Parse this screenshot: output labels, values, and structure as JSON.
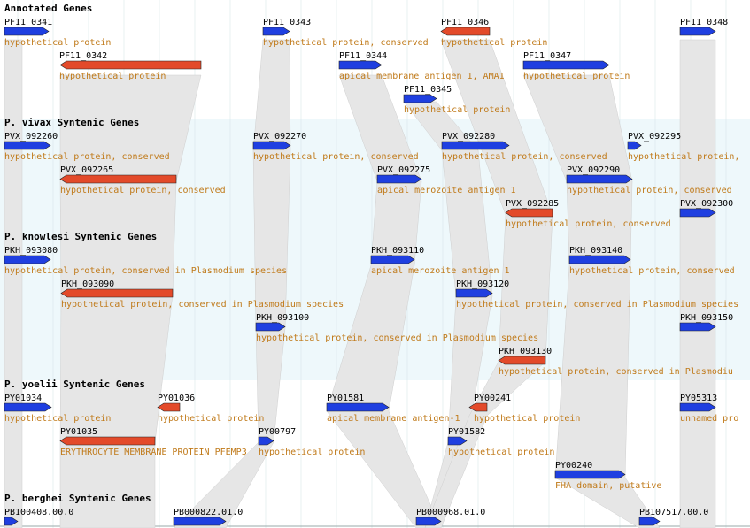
{
  "colors": {
    "forward": "#1f3fe0",
    "reverse": "#e34a2a",
    "label": "#c07a1a",
    "band": "#eef8fb",
    "connector": "#e6e6e6",
    "grid": "#d8e6ea"
  },
  "sections": [
    {
      "key": "annotated",
      "title": "Annotated Genes"
    },
    {
      "key": "pvivax",
      "title": "P. vivax Syntenic Genes"
    },
    {
      "key": "pknowlesi",
      "title": "P. knowlesi Syntenic Genes"
    },
    {
      "key": "pyoelii",
      "title": "P. yoelii Syntenic Genes"
    },
    {
      "key": "pberghei",
      "title": "P. berghei Syntenic Genes"
    }
  ],
  "genes": [
    {
      "id": "PF11_0341",
      "desc": "hypothetical protein",
      "strand": "+"
    },
    {
      "id": "PF11_0342",
      "desc": "hypothetical protein",
      "strand": "-"
    },
    {
      "id": "PF11_0343",
      "desc": "hypothetical protein, conserved",
      "strand": "+"
    },
    {
      "id": "PF11_0344",
      "desc": "apical membrane antigen 1,  AMA1",
      "strand": "+"
    },
    {
      "id": "PF11_0345",
      "desc": "hypothetical protein",
      "strand": "+"
    },
    {
      "id": "PF11_0346",
      "desc": "hypothetical protein",
      "strand": "-"
    },
    {
      "id": "PF11_0347",
      "desc": "hypothetical protein",
      "strand": "+"
    },
    {
      "id": "PF11_0348",
      "desc": "",
      "strand": "+"
    },
    {
      "id": "PVX_092260",
      "desc": "hypothetical protein, conserved",
      "strand": "+"
    },
    {
      "id": "PVX_092265",
      "desc": "hypothetical protein, conserved",
      "strand": "-"
    },
    {
      "id": "PVX_092270",
      "desc": "hypothetical protein, conserved",
      "strand": "+"
    },
    {
      "id": "PVX_092275",
      "desc": "apical merozoite antigen 1",
      "strand": "+"
    },
    {
      "id": "PVX_092280",
      "desc": "hypothetical protein, conserved",
      "strand": "+"
    },
    {
      "id": "PVX_092285",
      "desc": "hypothetical protein, conserved",
      "strand": "-"
    },
    {
      "id": "PVX_092290",
      "desc": "hypothetical protein, conserved",
      "strand": "+"
    },
    {
      "id": "PVX_092295",
      "desc": "hypothetical protein,",
      "strand": "+"
    },
    {
      "id": "PVX_092300",
      "desc": "",
      "strand": "+"
    },
    {
      "id": "PKH_093080",
      "desc": "hypothetical protein, conserved in Plasmodium species",
      "strand": "+"
    },
    {
      "id": "PKH_093090",
      "desc": "hypothetical protein, conserved in Plasmodium species",
      "strand": "-"
    },
    {
      "id": "PKH_093100",
      "desc": "hypothetical protein, conserved in Plasmodium species",
      "strand": "+"
    },
    {
      "id": "PKH_093110",
      "desc": "apical merozoite antigen 1",
      "strand": "+"
    },
    {
      "id": "PKH_093120",
      "desc": "hypothetical protein, conserved in Plasmodium species",
      "strand": "+"
    },
    {
      "id": "PKH_093130",
      "desc": "hypothetical protein, conserved in Plasmodiu",
      "strand": "-"
    },
    {
      "id": "PKH_093140",
      "desc": "hypothetical protein, conserved",
      "strand": "+"
    },
    {
      "id": "PKH_093150",
      "desc": "",
      "strand": "+"
    },
    {
      "id": "PY01034",
      "desc": "hypothetical protein",
      "strand": "+"
    },
    {
      "id": "PY01035",
      "desc": "ERYTHROCYTE MEMBRANE PROTEIN PFEMP3",
      "strand": "-"
    },
    {
      "id": "PY01036",
      "desc": "hypothetical protein",
      "strand": "-"
    },
    {
      "id": "PY00797",
      "desc": "hypothetical protein",
      "strand": "+"
    },
    {
      "id": "PY01581",
      "desc": "apical membrane antigen-1",
      "strand": "+"
    },
    {
      "id": "PY00241",
      "desc": "hypothetical protein",
      "strand": "-"
    },
    {
      "id": "PY01582",
      "desc": "hypothetical protein",
      "strand": "+"
    },
    {
      "id": "PY00240",
      "desc": "FHA domain, putative",
      "strand": "+"
    },
    {
      "id": "PY05313",
      "desc": "unnamed pro",
      "strand": "+"
    },
    {
      "id": "PB100408.00.0",
      "desc": "",
      "strand": "+"
    },
    {
      "id": "PB000822.01.0",
      "desc": "",
      "strand": "+"
    },
    {
      "id": "PB000968.01.0",
      "desc": "",
      "strand": "+"
    },
    {
      "id": "PB107517.00.0",
      "desc": "",
      "strand": "+"
    }
  ]
}
